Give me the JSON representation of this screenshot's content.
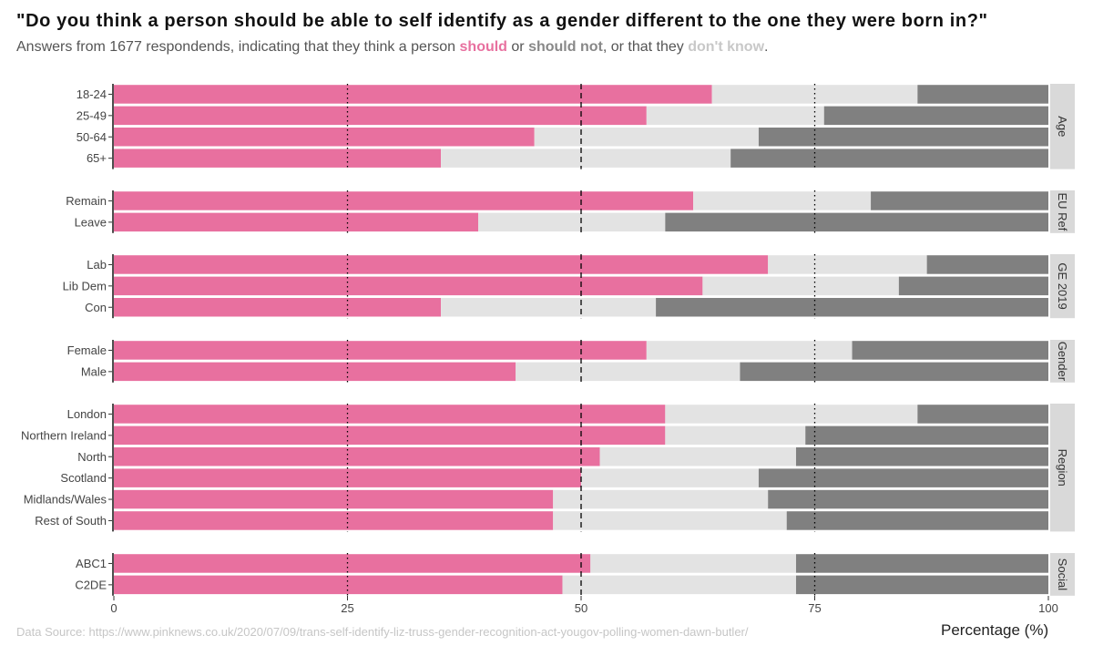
{
  "title": "\"Do you think a person should be able to self identify as a gender different to the one they were born in?\"",
  "subtitle": {
    "part1": "Answers from 1677 respondends, indicating that they think a person ",
    "should": "should",
    "or1": " or ",
    "should_not": "should not",
    "part2": ", or that they ",
    "dont_know": "don't know",
    "end": "."
  },
  "source": "Data Source: https://www.pinknews.co.uk/2020/07/09/trans-self-identify-liz-truss-gender-recognition-act-yougov-polling-women-dawn-butler/",
  "chart_data": {
    "type": "bar",
    "orientation": "horizontal",
    "stacked": true,
    "xlabel": "Percentage (%)",
    "xlim": [
      0,
      100
    ],
    "xticks": [
      0,
      25,
      50,
      75,
      100
    ],
    "reference_lines": [
      {
        "x": 25,
        "style": "dotted"
      },
      {
        "x": 50,
        "style": "dashed"
      },
      {
        "x": 75,
        "style": "dotted"
      }
    ],
    "colors": {
      "should": "#e8709f",
      "dont_know": "#e3e3e3",
      "should_not": "#808080",
      "strip": "#d9d9d9"
    },
    "series_order": [
      "should",
      "dont_know",
      "should_not"
    ],
    "panels": [
      {
        "label": "Age",
        "rows": [
          {
            "category": "18-24",
            "should": 64,
            "dont_know": 22,
            "should_not": 14
          },
          {
            "category": "25-49",
            "should": 57,
            "dont_know": 19,
            "should_not": 24
          },
          {
            "category": "50-64",
            "should": 45,
            "dont_know": 24,
            "should_not": 31
          },
          {
            "category": "65+",
            "should": 35,
            "dont_know": 31,
            "should_not": 34
          }
        ]
      },
      {
        "label": "EU Ref",
        "rows": [
          {
            "category": "Remain",
            "should": 62,
            "dont_know": 19,
            "should_not": 19
          },
          {
            "category": "Leave",
            "should": 39,
            "dont_know": 20,
            "should_not": 41
          }
        ]
      },
      {
        "label": "GE 2019",
        "rows": [
          {
            "category": "Lab",
            "should": 70,
            "dont_know": 17,
            "should_not": 13
          },
          {
            "category": "Lib Dem",
            "should": 63,
            "dont_know": 21,
            "should_not": 16
          },
          {
            "category": "Con",
            "should": 35,
            "dont_know": 23,
            "should_not": 42
          }
        ]
      },
      {
        "label": "Gender",
        "rows": [
          {
            "category": "Female",
            "should": 57,
            "dont_know": 22,
            "should_not": 21
          },
          {
            "category": "Male",
            "should": 43,
            "dont_know": 24,
            "should_not": 33
          }
        ]
      },
      {
        "label": "Region",
        "rows": [
          {
            "category": "London",
            "should": 59,
            "dont_know": 27,
            "should_not": 14
          },
          {
            "category": "Northern Ireland",
            "should": 59,
            "dont_know": 15,
            "should_not": 26
          },
          {
            "category": "North",
            "should": 52,
            "dont_know": 21,
            "should_not": 27
          },
          {
            "category": "Scotland",
            "should": 50,
            "dont_know": 19,
            "should_not": 31
          },
          {
            "category": "Midlands/Wales",
            "should": 47,
            "dont_know": 23,
            "should_not": 30
          },
          {
            "category": "Rest of South",
            "should": 47,
            "dont_know": 25,
            "should_not": 28
          }
        ]
      },
      {
        "label": "Social",
        "rows": [
          {
            "category": "ABC1",
            "should": 51,
            "dont_know": 22,
            "should_not": 27
          },
          {
            "category": "C2DE",
            "should": 48,
            "dont_know": 25,
            "should_not": 27
          }
        ]
      }
    ]
  }
}
